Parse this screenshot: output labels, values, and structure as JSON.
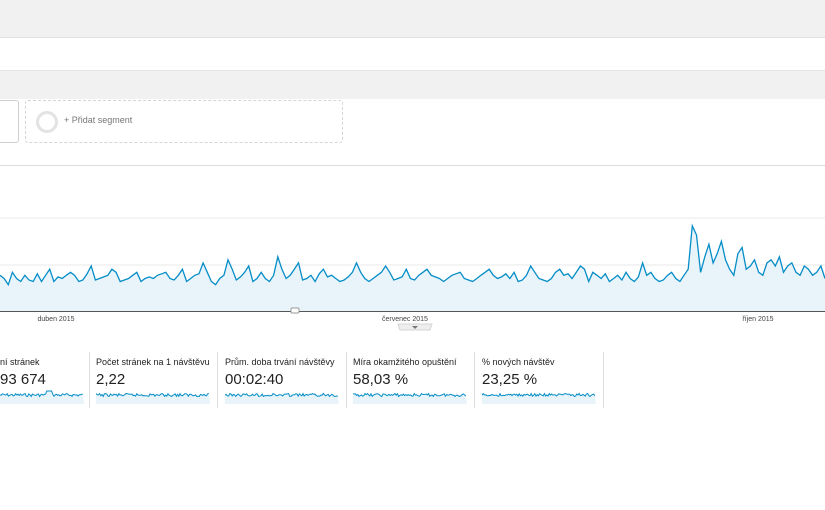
{
  "segments": {
    "add_label": "+ Přidat segment"
  },
  "chart_data": {
    "type": "area",
    "x_tick_labels": [
      "duben 2015",
      "červenec 2015",
      "říjen 2015"
    ],
    "color": "#058dc7",
    "fill": "#e8f3fa",
    "grid": true,
    "series": [
      {
        "values": [
          78,
          76,
          72,
          80,
          76,
          74,
          78,
          75,
          74,
          79,
          74,
          78,
          82,
          74,
          77,
          76,
          78,
          80,
          78,
          74,
          75,
          79,
          84,
          75,
          76,
          77,
          78,
          82,
          80,
          74,
          75,
          76,
          78,
          80,
          74,
          76,
          77,
          76,
          78,
          79,
          80,
          76,
          75,
          78,
          82,
          74,
          76,
          78,
          79,
          86,
          80,
          74,
          72,
          76,
          78,
          88,
          82,
          75,
          77,
          80,
          84,
          74,
          76,
          80,
          76,
          74,
          78,
          90,
          82,
          76,
          78,
          82,
          86,
          75,
          76,
          78,
          74,
          79,
          82,
          77,
          78,
          76,
          74,
          75,
          77,
          80,
          86,
          80,
          76,
          74,
          76,
          78,
          80,
          84,
          80,
          75,
          76,
          77,
          82,
          76,
          75,
          78,
          80,
          82,
          78,
          77,
          76,
          74,
          76,
          78,
          79,
          80,
          76,
          75,
          74,
          76,
          78,
          80,
          82,
          78,
          76,
          77,
          79,
          76,
          80,
          74,
          75,
          78,
          84,
          80,
          76,
          75,
          74,
          76,
          80,
          82,
          78,
          79,
          76,
          80,
          84,
          82,
          74,
          80,
          78,
          76,
          79,
          74,
          76,
          78,
          75,
          80,
          76,
          74,
          77,
          86,
          78,
          80,
          76,
          74,
          75,
          78,
          80,
          76,
          74,
          78,
          82,
          110,
          104,
          80,
          90,
          98,
          86,
          92,
          100,
          88,
          82,
          78,
          92,
          96,
          82,
          84,
          88,
          80,
          78,
          86,
          88,
          84,
          90,
          80,
          84,
          86,
          80,
          78,
          84,
          82,
          78,
          80,
          84,
          76
        ]
      }
    ]
  },
  "metrics": [
    {
      "label": "ní stránek",
      "value": "93 674"
    },
    {
      "label": "Počet stránek na 1 návštěvu",
      "value": "2,22"
    },
    {
      "label": "Prům. doba trvání návštěvy",
      "value": "00:02:40"
    },
    {
      "label": "Míra okamžitého opuštění",
      "value": "58,03 %"
    },
    {
      "label": "% nových návštěv",
      "value": "23,25 %"
    }
  ]
}
